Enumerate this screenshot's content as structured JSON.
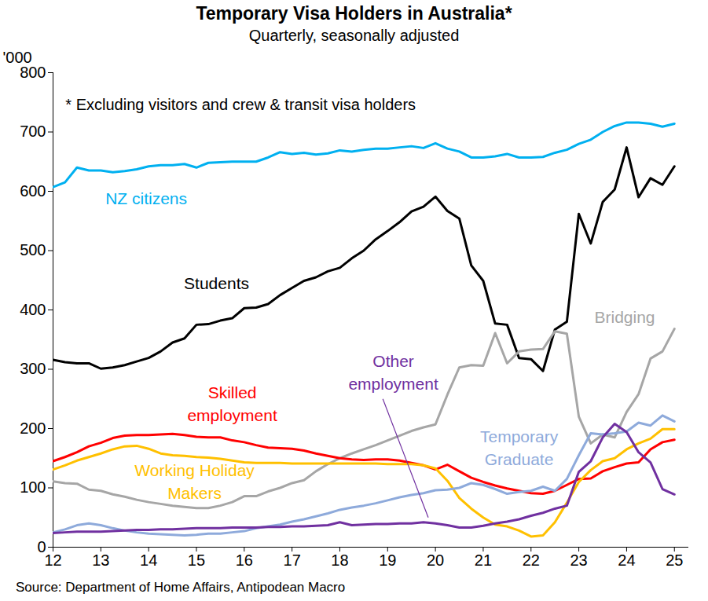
{
  "chart_data": {
    "type": "line",
    "title": "Temporary Visa Holders in Australia*",
    "subtitle": "Quarterly, seasonally adjusted",
    "ylabel": "'000",
    "annotations": [
      "* Excluding visitors and crew & transit visa holders"
    ],
    "source": "Source: Department of Home Affairs, Antipodean Macro",
    "x": [
      12,
      12.25,
      12.5,
      12.75,
      13,
      13.25,
      13.5,
      13.75,
      14,
      14.25,
      14.5,
      14.75,
      15,
      15.25,
      15.5,
      15.75,
      16,
      16.25,
      16.5,
      16.75,
      17,
      17.25,
      17.5,
      17.75,
      18,
      18.25,
      18.5,
      18.75,
      19,
      19.25,
      19.5,
      19.75,
      20,
      20.25,
      20.5,
      20.75,
      21,
      21.25,
      21.5,
      21.75,
      22,
      22.25,
      22.5,
      22.75,
      23,
      23.25,
      23.5,
      23.75,
      24,
      24.25,
      24.5,
      24.75,
      25
    ],
    "xlim": [
      12,
      25.3
    ],
    "xticks": [
      12,
      13,
      14,
      15,
      16,
      17,
      18,
      19,
      20,
      21,
      22,
      23,
      24,
      25
    ],
    "ylim": [
      0,
      800
    ],
    "yticks": [
      0,
      100,
      200,
      300,
      400,
      500,
      600,
      700,
      800
    ],
    "grid": false,
    "series": [
      {
        "name": "NZ citizens",
        "color": "#00b0f0",
        "values": [
          607,
          615,
          640,
          635,
          635,
          632,
          634,
          637,
          642,
          644,
          644,
          646,
          640,
          648,
          649,
          650,
          650,
          650,
          657,
          666,
          663,
          665,
          662,
          664,
          669,
          667,
          670,
          672,
          672,
          674,
          676,
          673,
          681,
          672,
          667,
          657,
          657,
          659,
          663,
          657,
          657,
          658,
          665,
          670,
          680,
          687,
          700,
          710,
          716,
          716,
          714,
          709,
          714
        ]
      },
      {
        "name": "Students",
        "color": "#000000",
        "values": [
          316,
          312,
          310,
          310,
          301,
          303,
          307,
          313,
          319,
          330,
          345,
          352,
          375,
          376,
          382,
          386,
          403,
          404,
          410,
          425,
          437,
          449,
          455,
          465,
          471,
          487,
          500,
          519,
          533,
          548,
          566,
          574,
          591,
          567,
          554,
          475,
          449,
          377,
          375,
          319,
          317,
          297,
          367,
          380,
          562,
          512,
          582,
          603,
          674,
          590,
          622,
          611,
          642
        ]
      },
      {
        "name": "Bridging",
        "color": "#a6a6a6",
        "values": [
          111,
          108,
          107,
          97,
          95,
          89,
          85,
          80,
          76,
          73,
          70,
          68,
          66,
          66,
          70,
          76,
          86,
          86,
          94,
          100,
          108,
          113,
          128,
          140,
          150,
          158,
          165,
          172,
          180,
          188,
          196,
          202,
          207,
          257,
          303,
          307,
          306,
          361,
          310,
          330,
          333,
          334,
          364,
          360,
          220,
          175,
          190,
          185,
          228,
          258,
          318,
          330,
          368
        ]
      },
      {
        "name": "Skilled\nemployment",
        "color": "#ff0000",
        "values": [
          145,
          152,
          160,
          170,
          176,
          184,
          188,
          189,
          189,
          190,
          191,
          189,
          186,
          185,
          185,
          180,
          177,
          172,
          168,
          167,
          166,
          163,
          158,
          154,
          150,
          148,
          147,
          148,
          148,
          146,
          142,
          138,
          131,
          139,
          128,
          117,
          110,
          104,
          99,
          95,
          91,
          90,
          95,
          105,
          115,
          116,
          128,
          135,
          141,
          143,
          165,
          177,
          181
        ]
      },
      {
        "name": "Working Holiday\nMakers",
        "color": "#ffc000",
        "values": [
          131,
          138,
          146,
          152,
          158,
          165,
          170,
          171,
          166,
          158,
          155,
          154,
          152,
          151,
          149,
          146,
          143,
          142,
          142,
          142,
          141,
          141,
          141,
          141,
          141,
          141,
          141,
          141,
          140,
          140,
          140,
          138,
          133,
          112,
          83,
          65,
          50,
          38,
          35,
          28,
          18,
          20,
          42,
          75,
          110,
          130,
          145,
          150,
          165,
          175,
          183,
          199,
          199
        ]
      },
      {
        "name": "Temporary\nGraduate",
        "color": "#8eaadb",
        "values": [
          25,
          30,
          37,
          40,
          37,
          32,
          28,
          25,
          23,
          22,
          21,
          20,
          21,
          23,
          23,
          25,
          27,
          32,
          35,
          38,
          43,
          47,
          52,
          57,
          63,
          67,
          70,
          74,
          79,
          84,
          88,
          91,
          96,
          97,
          100,
          108,
          105,
          98,
          90,
          93,
          95,
          102,
          95,
          115,
          155,
          192,
          190,
          192,
          195,
          210,
          205,
          222,
          212
        ]
      },
      {
        "name": "Other\nemployment",
        "color": "#7030a0",
        "values": [
          24,
          25,
          26,
          26,
          26,
          27,
          28,
          29,
          29,
          30,
          30,
          31,
          32,
          32,
          32,
          33,
          33,
          33,
          34,
          34,
          35,
          35,
          36,
          37,
          42,
          37,
          38,
          39,
          39,
          40,
          40,
          42,
          40,
          37,
          33,
          33,
          36,
          40,
          43,
          47,
          53,
          58,
          65,
          70,
          127,
          145,
          185,
          208,
          194,
          160,
          143,
          98,
          89
        ]
      }
    ]
  }
}
